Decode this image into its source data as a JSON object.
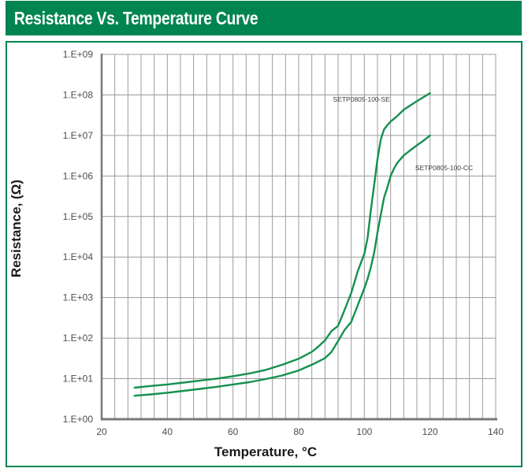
{
  "header": {
    "title": "Resistance Vs. Temperature Curve"
  },
  "colors": {
    "banner_green": "#008551",
    "banner_text": "#ffffff",
    "border_green": "#008551",
    "curve_green": "#14904f",
    "grid_gray": "#9c9c9c",
    "axis_gray": "#787878",
    "tick_text": "#4d4d4d",
    "axis_title_text": "#1a1a1a",
    "curve_label_text": "#3d3d3d",
    "plot_background": "#ffffff"
  },
  "chart_data": {
    "type": "line",
    "title": "Resistance Vs. Temperature Curve",
    "xlabel": "Temperature, °C",
    "ylabel": "Resistance, (Ω)",
    "xlim": [
      20,
      140
    ],
    "x_minor_step": 4,
    "x_major_step": 20,
    "x_tick_labels": [
      "20",
      "40",
      "60",
      "80",
      "100",
      "120",
      "140"
    ],
    "x_ticks": [
      20,
      40,
      60,
      80,
      100,
      120,
      140
    ],
    "y_scale": "log",
    "ylim_exp": [
      0,
      9
    ],
    "y_tick_labels": [
      "1.E+09",
      "1.E+08",
      "1.E+07",
      "1.E+06",
      "1.E+05",
      "1.E+04",
      "1.E+03",
      "1.E+02",
      "1.E+01",
      "1.E+00"
    ],
    "y_tick_exps": [
      9,
      8,
      7,
      6,
      5,
      4,
      3,
      2,
      1,
      0
    ],
    "grid": true,
    "legend_position": "inline-annotations",
    "series": [
      {
        "name": "SETP0805-100-SE",
        "label": "SETP0805-100-SE",
        "label_pos": {
          "t": 107.8,
          "r": 78000000,
          "anchor": "end"
        },
        "points": [
          [
            30,
            6
          ],
          [
            35,
            6.6
          ],
          [
            40,
            7.2
          ],
          [
            45,
            8
          ],
          [
            50,
            9
          ],
          [
            55,
            10
          ],
          [
            60,
            11.5
          ],
          [
            65,
            13.5
          ],
          [
            70,
            16.5
          ],
          [
            75,
            22
          ],
          [
            80,
            31
          ],
          [
            84,
            46
          ],
          [
            86,
            62
          ],
          [
            88,
            88
          ],
          [
            90,
            150
          ],
          [
            92,
            200
          ],
          [
            94,
            500
          ],
          [
            96,
            1300
          ],
          [
            98,
            4500
          ],
          [
            100,
            12000
          ],
          [
            101,
            30000
          ],
          [
            102,
            150000
          ],
          [
            103,
            600000
          ],
          [
            104,
            2600000
          ],
          [
            105,
            8000000
          ],
          [
            106,
            14000000
          ],
          [
            107,
            18000000
          ],
          [
            108,
            22000000
          ],
          [
            110,
            30000000
          ],
          [
            112,
            43000000
          ],
          [
            114,
            55000000
          ],
          [
            116,
            70000000
          ],
          [
            118,
            88000000
          ],
          [
            120,
            110000000
          ]
        ]
      },
      {
        "name": "SETP0805-100-CC",
        "label": "SETP0805-100-CC",
        "label_pos": {
          "t": 115.5,
          "r": 1580000,
          "anchor": "start"
        },
        "points": [
          [
            30,
            3.8
          ],
          [
            35,
            4.1
          ],
          [
            40,
            4.5
          ],
          [
            45,
            5
          ],
          [
            50,
            5.6
          ],
          [
            55,
            6.3
          ],
          [
            60,
            7.2
          ],
          [
            65,
            8.2
          ],
          [
            70,
            9.8
          ],
          [
            75,
            12
          ],
          [
            80,
            16
          ],
          [
            84,
            22
          ],
          [
            88,
            32
          ],
          [
            90,
            46
          ],
          [
            92,
            85
          ],
          [
            94,
            160
          ],
          [
            96,
            250
          ],
          [
            98,
            650
          ],
          [
            100,
            1700
          ],
          [
            101,
            2900
          ],
          [
            102,
            5800
          ],
          [
            103,
            13000
          ],
          [
            104,
            40000
          ],
          [
            105,
            110000
          ],
          [
            106,
            290000
          ],
          [
            107,
            520000
          ],
          [
            108,
            1000000
          ],
          [
            109,
            1500000
          ],
          [
            110,
            2100000
          ],
          [
            112,
            3200000
          ],
          [
            114,
            4300000
          ],
          [
            116,
            5700000
          ],
          [
            118,
            7400000
          ],
          [
            120,
            10000000
          ]
        ]
      }
    ]
  }
}
